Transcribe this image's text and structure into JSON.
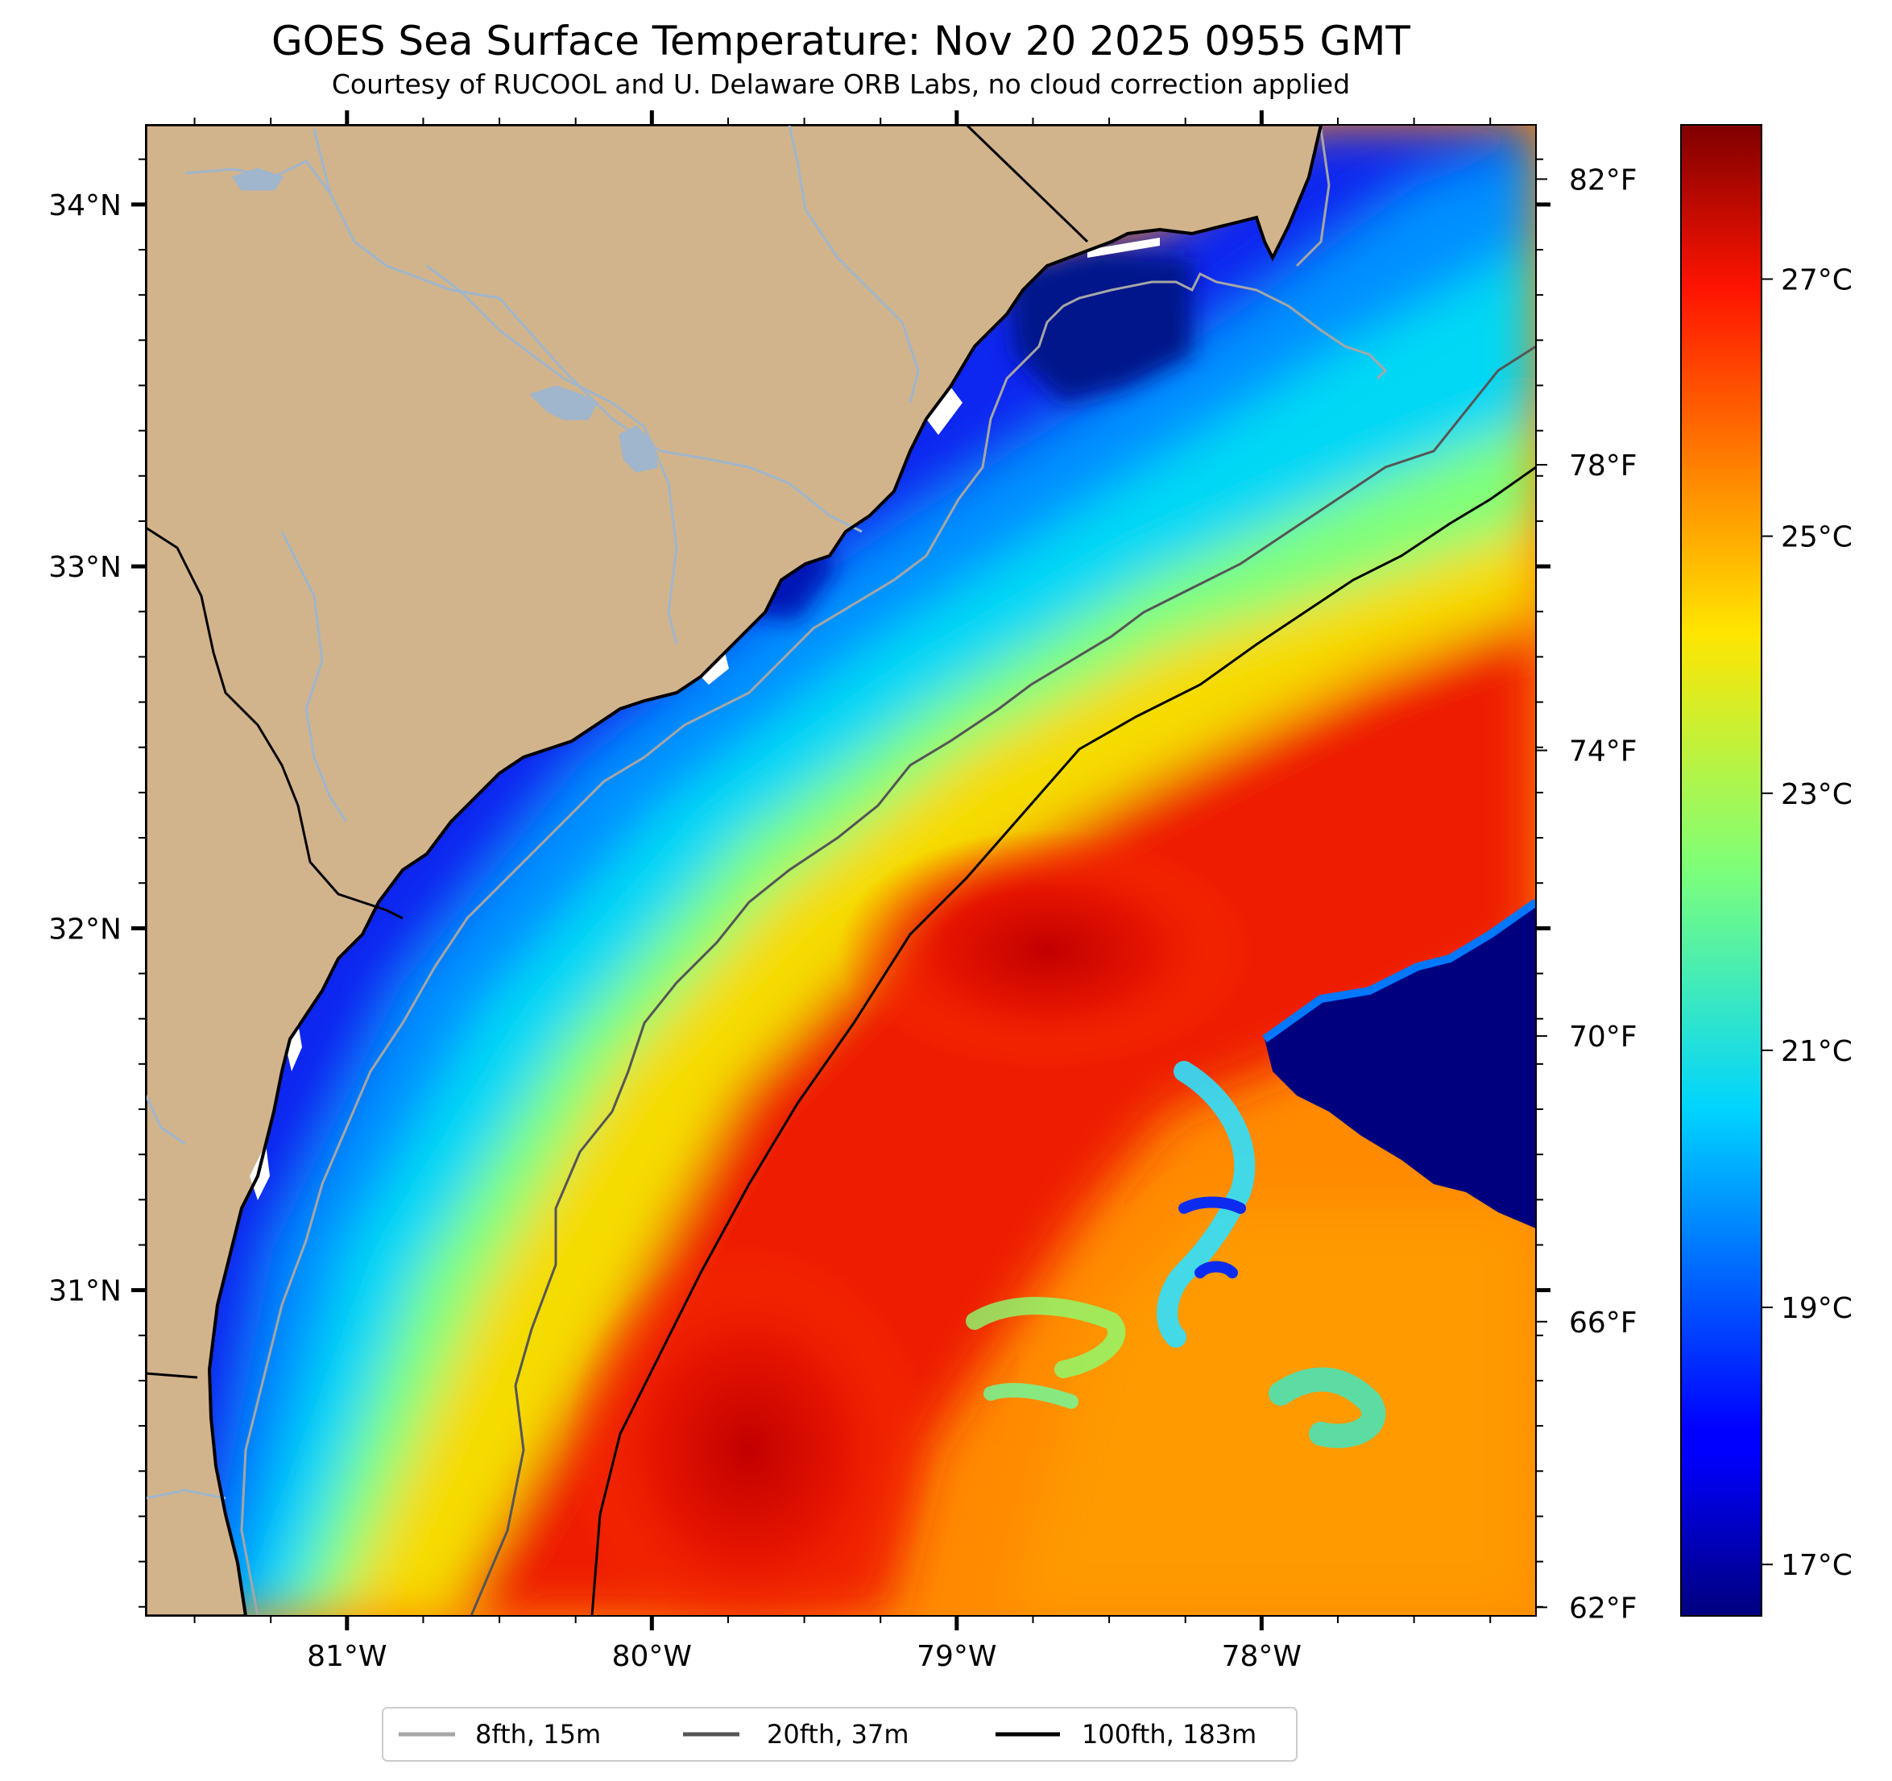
{
  "title": "GOES Sea Surface Temperature: Nov 20 2025 0955 GMT",
  "subtitle": "Courtesy of RUCOOL and U. Delaware ORB Labs, no cloud correction applied",
  "colors": {
    "land": "#d2b48c",
    "river": "#9fb6cc",
    "coast": "#000000",
    "isobath_8fth": "#a6a6a6",
    "isobath_20fth": "#555555",
    "isobath_100fth": "#000000"
  },
  "map": {
    "lon_range": [
      -81.66,
      -77.1
    ],
    "lat_range": [
      30.1,
      34.22
    ],
    "lat_ticks": [
      {
        "value": 34,
        "label": "34°N"
      },
      {
        "value": 33,
        "label": "33°N"
      },
      {
        "value": 32,
        "label": "32°N"
      },
      {
        "value": 31,
        "label": "31°N"
      }
    ],
    "lon_ticks": [
      {
        "value": -81,
        "label": "81°W"
      },
      {
        "value": -80,
        "label": "80°W"
      },
      {
        "value": -79,
        "label": "79°W"
      },
      {
        "value": -78,
        "label": "78°W"
      }
    ]
  },
  "colorbar": {
    "colormap": "jet",
    "range_celsius": [
      16.6,
      28.2
    ],
    "celsius_ticks": [
      {
        "value": 17,
        "label": "17°C"
      },
      {
        "value": 19,
        "label": "19°C"
      },
      {
        "value": 21,
        "label": "21°C"
      },
      {
        "value": 23,
        "label": "23°C"
      },
      {
        "value": 25,
        "label": "25°C"
      },
      {
        "value": 27,
        "label": "27°C"
      }
    ],
    "fahrenheit_ticks": [
      {
        "value": 62,
        "label": "62°F"
      },
      {
        "value": 66,
        "label": "66°F"
      },
      {
        "value": 70,
        "label": "70°F"
      },
      {
        "value": 74,
        "label": "74°F"
      },
      {
        "value": 78,
        "label": "78°F"
      },
      {
        "value": 82,
        "label": "82°F"
      }
    ]
  },
  "legend": {
    "items": [
      {
        "label": "8fth, 15m",
        "color": "#a6a6a6"
      },
      {
        "label": "20fth, 37m",
        "color": "#555555"
      },
      {
        "label": "100fth, 183m",
        "color": "#000000"
      }
    ]
  }
}
